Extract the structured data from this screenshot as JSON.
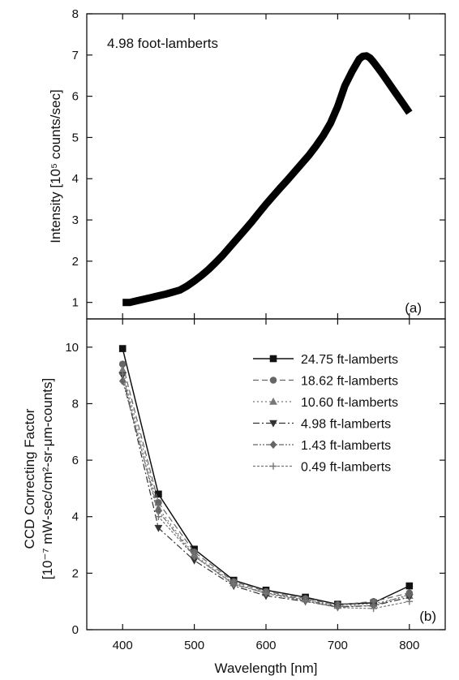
{
  "chart_data": [
    {
      "type": "line",
      "panel_label": "(a)",
      "annotation": "4.98 foot-lamberts",
      "ylabel": "Intensity [10⁵ counts/sec]",
      "xlim": [
        350,
        850
      ],
      "ylim": [
        0.6,
        8
      ],
      "yticks": [
        1,
        2,
        3,
        4,
        5,
        6,
        7,
        8
      ],
      "grid": false,
      "series": [
        {
          "x": [
            400,
            410,
            420,
            430,
            440,
            450,
            460,
            470,
            480,
            490,
            500,
            510,
            520,
            530,
            540,
            550,
            560,
            570,
            580,
            590,
            600,
            610,
            620,
            630,
            640,
            650,
            660,
            670,
            680,
            690,
            700,
            710,
            720,
            730,
            735,
            740,
            745,
            750,
            760,
            770,
            780,
            790,
            800
          ],
          "y": [
            1.0,
            1.0,
            1.04,
            1.08,
            1.12,
            1.16,
            1.2,
            1.25,
            1.3,
            1.4,
            1.52,
            1.65,
            1.8,
            1.97,
            2.15,
            2.35,
            2.55,
            2.75,
            2.95,
            3.17,
            3.38,
            3.58,
            3.78,
            3.97,
            4.17,
            4.37,
            4.57,
            4.8,
            5.05,
            5.35,
            5.75,
            6.25,
            6.6,
            6.9,
            6.97,
            6.98,
            6.93,
            6.83,
            6.6,
            6.35,
            6.1,
            5.85,
            5.6
          ]
        }
      ]
    },
    {
      "type": "line",
      "panel_label": "(b)",
      "xlabel": "Wavelength [nm]",
      "ylabel": "CCD Correcting Factor",
      "ylabel2": "[10⁻⁷ mW-sec/cm²-sr-μm-counts]",
      "xlim": [
        350,
        850
      ],
      "ylim": [
        0,
        11
      ],
      "xticks": [
        400,
        500,
        600,
        700,
        800
      ],
      "yticks": [
        0,
        2,
        4,
        6,
        8,
        10
      ],
      "grid": false,
      "legend_position": "top-right",
      "x": [
        400,
        450,
        500,
        555,
        600,
        655,
        700,
        750,
        800
      ],
      "series": [
        {
          "name": "24.75 ft-lamberts",
          "marker": "square",
          "dash": "",
          "values": [
            9.95,
            4.8,
            2.85,
            1.75,
            1.4,
            1.15,
            0.9,
            0.95,
            1.55
          ]
        },
        {
          "name": "18.62 ft-lamberts",
          "marker": "circle",
          "dash": "7,4",
          "values": [
            9.4,
            4.5,
            2.75,
            1.7,
            1.35,
            1.1,
            0.88,
            1.0,
            1.3
          ]
        },
        {
          "name": "10.60 ft-lamberts",
          "marker": "triangle-up",
          "dash": "2,3",
          "values": [
            9.2,
            4.3,
            2.65,
            1.65,
            1.3,
            1.08,
            0.85,
            0.92,
            1.2
          ]
        },
        {
          "name": "4.98 ft-lamberts",
          "marker": "triangle-down",
          "dash": "8,3,2,3",
          "values": [
            9.0,
            3.6,
            2.45,
            1.55,
            1.2,
            1.0,
            0.8,
            0.85,
            1.15
          ]
        },
        {
          "name": "1.43 ft-lamberts",
          "marker": "diamond",
          "dash": "6,2,2,2,2,2",
          "values": [
            8.8,
            4.2,
            2.6,
            1.6,
            1.3,
            1.05,
            0.82,
            0.85,
            1.25
          ]
        },
        {
          "name": "0.49 ft-lamberts",
          "marker": "plus",
          "dash": "3,2",
          "values": [
            9.05,
            4.0,
            2.6,
            1.62,
            1.28,
            1.02,
            0.78,
            0.75,
            1.0
          ]
        }
      ]
    }
  ]
}
